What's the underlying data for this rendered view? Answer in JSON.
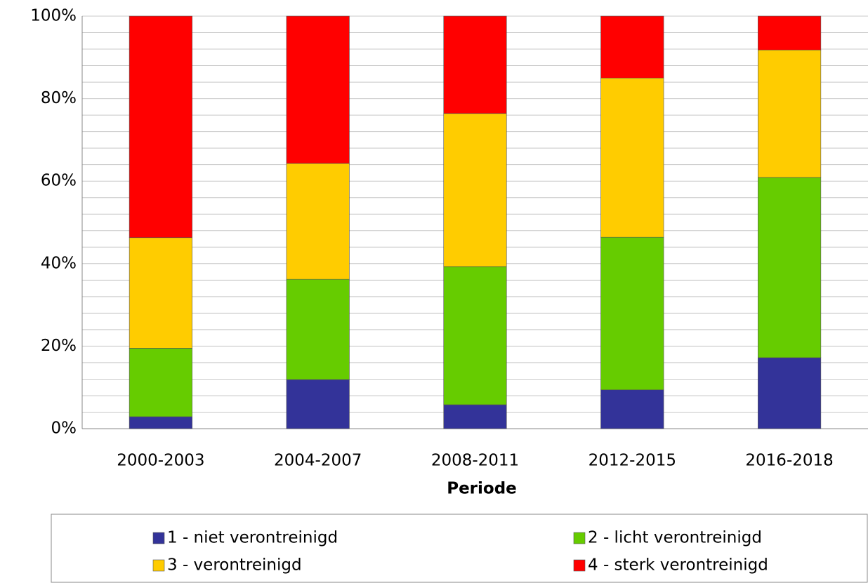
{
  "chart_data": {
    "type": "stacked_bar",
    "x_label": "Periode",
    "categories": [
      "2000-2003",
      "2004-2007",
      "2008-2011",
      "2012-2015",
      "2016-2018"
    ],
    "series": [
      {
        "name": "1 - niet verontreinigd",
        "color": "#333399",
        "values": [
          2.9,
          11.9,
          5.8,
          9.4,
          17.2
        ]
      },
      {
        "name": "2 - licht verontreinigd",
        "color": "#66cc00",
        "values": [
          16.6,
          24.3,
          33.5,
          37.0,
          43.7
        ]
      },
      {
        "name": "3 - verontreinigd",
        "color": "#ffcc00",
        "values": [
          26.8,
          28.1,
          37.1,
          38.6,
          30.9
        ]
      },
      {
        "name": "4 - sterk verontreinigd",
        "color": "#ff0000",
        "values": [
          53.7,
          35.7,
          23.6,
          15.0,
          8.2
        ]
      }
    ],
    "ylim": [
      0,
      100
    ],
    "yticks": [
      {
        "value": 0,
        "label": "0%"
      },
      {
        "value": 20,
        "label": "20%"
      },
      {
        "value": 40,
        "label": "40%"
      },
      {
        "value": 60,
        "label": "60%"
      },
      {
        "value": 80,
        "label": "80%"
      },
      {
        "value": 100,
        "label": "100%"
      }
    ],
    "minor_yticks": [
      4,
      8,
      12,
      16,
      24,
      28,
      32,
      36,
      44,
      48,
      52,
      56,
      64,
      68,
      72,
      76,
      84,
      88,
      92,
      96
    ],
    "grid": true,
    "legend": "bottom"
  }
}
